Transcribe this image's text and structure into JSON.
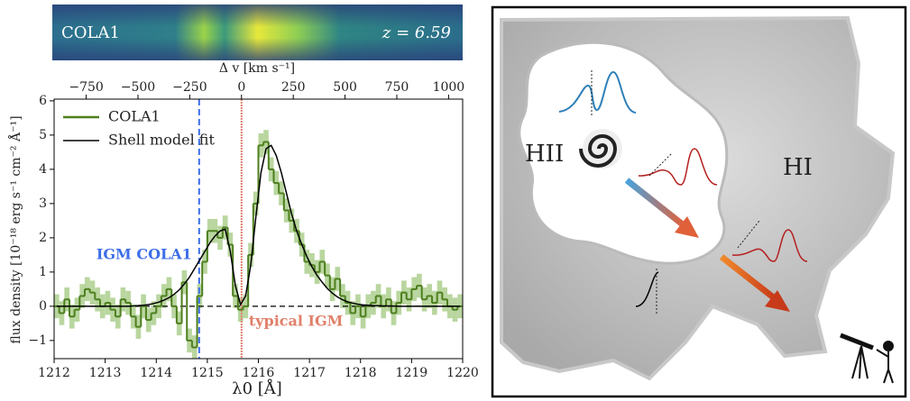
{
  "chart_data": {
    "type": "step",
    "inset_labels": [
      "COLA1",
      "z = 6.59"
    ],
    "xlabel": "λ0 [Å]",
    "x2label": "Δ v [km s⁻¹]",
    "ylabel": "flux density [10⁻¹⁸ erg s⁻¹ cm⁻² Å⁻¹]",
    "xlim": [
      1212,
      1220
    ],
    "xticks": [
      1212,
      1213,
      1214,
      1215,
      1216,
      1217,
      1218,
      1219,
      1220
    ],
    "x2lim": [
      -905,
      1068
    ],
    "x2ticks": [
      {
        "value": -750,
        "label": "−750"
      },
      {
        "value": -500,
        "label": "−500"
      },
      {
        "value": -250,
        "label": "−250"
      },
      0,
      250,
      500,
      750,
      1000
    ],
    "ylim": [
      -1.53,
      6.05
    ],
    "yticks": [
      {
        "value": -1,
        "label": "−1"
      },
      0,
      1,
      2,
      3,
      4,
      5,
      6
    ],
    "hline": 0,
    "legend": "upper left",
    "x": [
      1212.05,
      1212.15,
      1212.25,
      1212.35,
      1212.45,
      1212.55,
      1212.65,
      1212.75,
      1212.85,
      1212.95,
      1213.05,
      1213.15,
      1213.25,
      1213.35,
      1213.45,
      1213.55,
      1213.65,
      1213.75,
      1213.85,
      1213.95,
      1214.05,
      1214.15,
      1214.25,
      1214.35,
      1214.45,
      1214.55,
      1214.65,
      1214.75,
      1214.85,
      1214.95,
      1215.05,
      1215.15,
      1215.25,
      1215.35,
      1215.45,
      1215.55,
      1215.65,
      1215.75,
      1215.85,
      1215.95,
      1216.05,
      1216.15,
      1216.25,
      1216.35,
      1216.45,
      1216.55,
      1216.65,
      1216.75,
      1216.85,
      1216.95,
      1217.05,
      1217.15,
      1217.25,
      1217.35,
      1217.45,
      1217.55,
      1217.65,
      1217.75,
      1217.85,
      1217.95,
      1218.05,
      1218.15,
      1218.25,
      1218.35,
      1218.45,
      1218.55,
      1218.65,
      1218.75,
      1218.85,
      1218.95,
      1219.05,
      1219.15,
      1219.25,
      1219.35,
      1219.45,
      1219.55,
      1219.65,
      1219.75,
      1219.85,
      1219.95
    ],
    "series": [
      {
        "name": "COLA1",
        "color": "#4d7f1e",
        "band_color": "#b9d69f",
        "error": 0.35,
        "values": [
          0.0,
          -0.2,
          0.2,
          -0.3,
          -0.1,
          0.3,
          0.5,
          0.4,
          0.2,
          0.0,
          0.1,
          -0.1,
          -0.3,
          0.2,
          0.1,
          -0.3,
          -0.6,
          0.0,
          -0.4,
          -0.2,
          0.0,
          0.3,
          0.5,
          0.0,
          -0.5,
          0.7,
          -1.0,
          -1.2,
          0.3,
          1.3,
          2.2,
          2.2,
          2.0,
          2.3,
          1.8,
          0.3,
          -0.1,
          0.0,
          1.5,
          3.0,
          4.7,
          4.8,
          4.0,
          3.6,
          3.3,
          2.8,
          2.5,
          2.2,
          1.8,
          1.3,
          1.2,
          1.0,
          1.3,
          0.9,
          0.5,
          0.8,
          0.3,
          0.1,
          -0.2,
          0.0,
          -0.3,
          0.0,
          0.1,
          0.3,
          0.0,
          0.2,
          -0.2,
          0.1,
          0.4,
          0.2,
          0.5,
          0.6,
          0.2,
          0.3,
          0.1,
          0.4,
          0.2,
          0.0,
          -0.1,
          0.0
        ]
      },
      {
        "name": "Shell model fit",
        "color": "#000000",
        "values": [
          0,
          0,
          0,
          0,
          0,
          0,
          0,
          0,
          0,
          0,
          0,
          0,
          0,
          0,
          0,
          0.01,
          0.02,
          0.03,
          0.05,
          0.08,
          0.12,
          0.18,
          0.25,
          0.35,
          0.48,
          0.65,
          0.85,
          1.1,
          1.35,
          1.6,
          1.85,
          2.05,
          2.2,
          2.25,
          1.6,
          0.6,
          0.05,
          0.3,
          1.2,
          2.6,
          3.9,
          4.6,
          4.7,
          4.4,
          3.9,
          3.3,
          2.7,
          2.2,
          1.8,
          1.45,
          1.15,
          0.9,
          0.7,
          0.52,
          0.38,
          0.27,
          0.19,
          0.13,
          0.09,
          0.06,
          0.04,
          0.03,
          0.02,
          0.015,
          0.01,
          0.01,
          0.005,
          0,
          0,
          0,
          0,
          0,
          0,
          0,
          0,
          0,
          0,
          0,
          0,
          0
        ]
      }
    ],
    "vlines": [
      {
        "x": 1214.84,
        "label": "IGM COLA1",
        "color": "#3d6ee8"
      },
      {
        "x": 1215.67,
        "label": "typical IGM",
        "color": "#e0806a"
      }
    ]
  },
  "illustration": {
    "labels": [
      "HII",
      "HI"
    ]
  }
}
